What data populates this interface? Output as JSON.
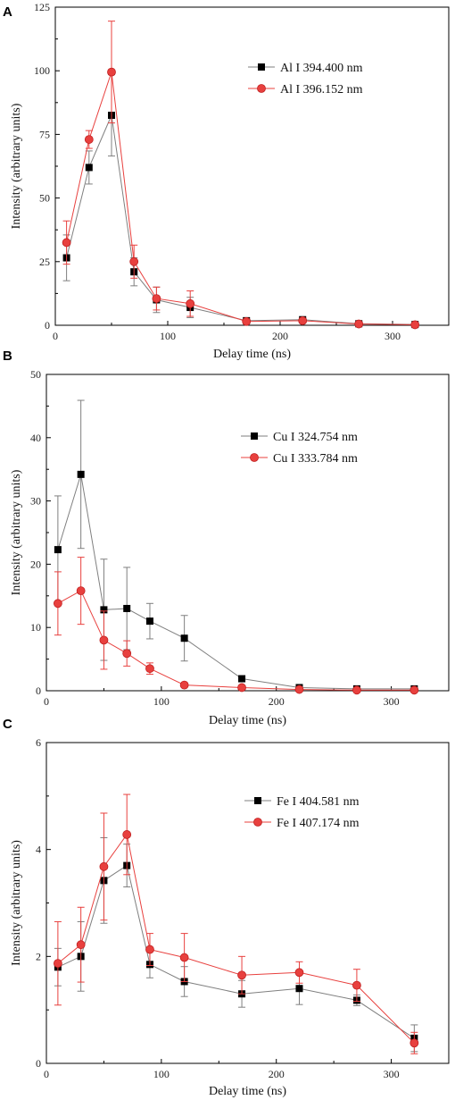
{
  "chart_data": [
    {
      "type": "line",
      "panel_label": "A",
      "xlabel": "Delay time (ns)",
      "ylabel": "Intensity (arbitrary units)",
      "xlim": [
        0,
        350
      ],
      "ylim": [
        0,
        125
      ],
      "xticks": [
        0,
        100,
        200,
        300
      ],
      "yticks": [
        0,
        25,
        50,
        75,
        100,
        125
      ],
      "legend_position": "top-right",
      "x": [
        10,
        30,
        50,
        70,
        90,
        120,
        170,
        220,
        270,
        320
      ],
      "series": [
        {
          "name": "Al I 394.400 nm",
          "color": "#7f7f7f",
          "marker": "square",
          "marker_color": "#000000",
          "values": [
            26.5,
            62,
            82.5,
            21,
            10,
            7,
            1.8,
            2.2,
            0.6,
            0.3
          ],
          "errors": [
            9,
            6.5,
            16,
            5.5,
            5,
            4,
            0.5,
            0.6,
            0.3,
            0.2
          ]
        },
        {
          "name": "Al I 396.152 nm",
          "color": "#e8403e",
          "marker": "circle",
          "marker_color": "#e8403e",
          "values": [
            32.5,
            73,
            99.5,
            25,
            10.5,
            8.5,
            1.5,
            1.8,
            0.5,
            0.2
          ],
          "errors": [
            8.5,
            3.5,
            20,
            6.5,
            4.5,
            5,
            0.5,
            0.5,
            0.3,
            0.2
          ]
        }
      ]
    },
    {
      "type": "line",
      "panel_label": "B",
      "xlabel": "Delay time (ns)",
      "ylabel": "Intensity (arbitrary units)",
      "xlim": [
        0,
        350
      ],
      "ylim": [
        0,
        50
      ],
      "xticks": [
        0,
        100,
        200,
        300
      ],
      "yticks": [
        0,
        10,
        20,
        30,
        40,
        50
      ],
      "legend_position": "top-right",
      "x": [
        10,
        30,
        50,
        70,
        90,
        120,
        170,
        220,
        270,
        320
      ],
      "series": [
        {
          "name": "Cu I 324.754 nm",
          "color": "#7f7f7f",
          "marker": "square",
          "marker_color": "#000000",
          "values": [
            22.3,
            34.2,
            12.8,
            13,
            11,
            8.3,
            1.9,
            0.5,
            0.3,
            0.3
          ],
          "errors": [
            8.5,
            11.7,
            8,
            6.5,
            2.8,
            3.6,
            0.4,
            0.2,
            0.1,
            0.1
          ]
        },
        {
          "name": "Cu I 333.784 nm",
          "color": "#e8403e",
          "marker": "circle",
          "marker_color": "#e8403e",
          "values": [
            13.8,
            15.8,
            8,
            5.9,
            3.5,
            0.9,
            0.5,
            0.2,
            0.1,
            0.1
          ],
          "errors": [
            5,
            5.3,
            4.6,
            2,
            0.9,
            0.3,
            0.2,
            0.1,
            0.1,
            0.1
          ]
        }
      ]
    },
    {
      "type": "line",
      "panel_label": "C",
      "xlabel": "Delay time (ns)",
      "ylabel": "Intensity (arbitrary units)",
      "xlim": [
        0,
        350
      ],
      "ylim": [
        0,
        6
      ],
      "xticks": [
        0,
        100,
        200,
        300
      ],
      "yticks": [
        0,
        2,
        4,
        6
      ],
      "legend_position": "top-right",
      "x": [
        10,
        30,
        50,
        70,
        90,
        120,
        170,
        220,
        270,
        320
      ],
      "series": [
        {
          "name": "Fe I 404.581 nm",
          "color": "#7f7f7f",
          "marker": "square",
          "marker_color": "#000000",
          "values": [
            1.8,
            2.0,
            3.42,
            3.7,
            1.85,
            1.53,
            1.3,
            1.4,
            1.18,
            0.47
          ],
          "errors": [
            0.35,
            0.65,
            0.8,
            0.4,
            0.25,
            0.28,
            0.25,
            0.3,
            0.1,
            0.25
          ]
        },
        {
          "name": "Fe I 407.174 nm",
          "color": "#e8403e",
          "marker": "circle",
          "marker_color": "#e8403e",
          "values": [
            1.87,
            2.22,
            3.68,
            4.28,
            2.13,
            1.98,
            1.65,
            1.7,
            1.46,
            0.38
          ],
          "errors": [
            0.78,
            0.7,
            1.0,
            0.75,
            0.3,
            0.45,
            0.35,
            0.2,
            0.3,
            0.2
          ]
        }
      ]
    }
  ]
}
